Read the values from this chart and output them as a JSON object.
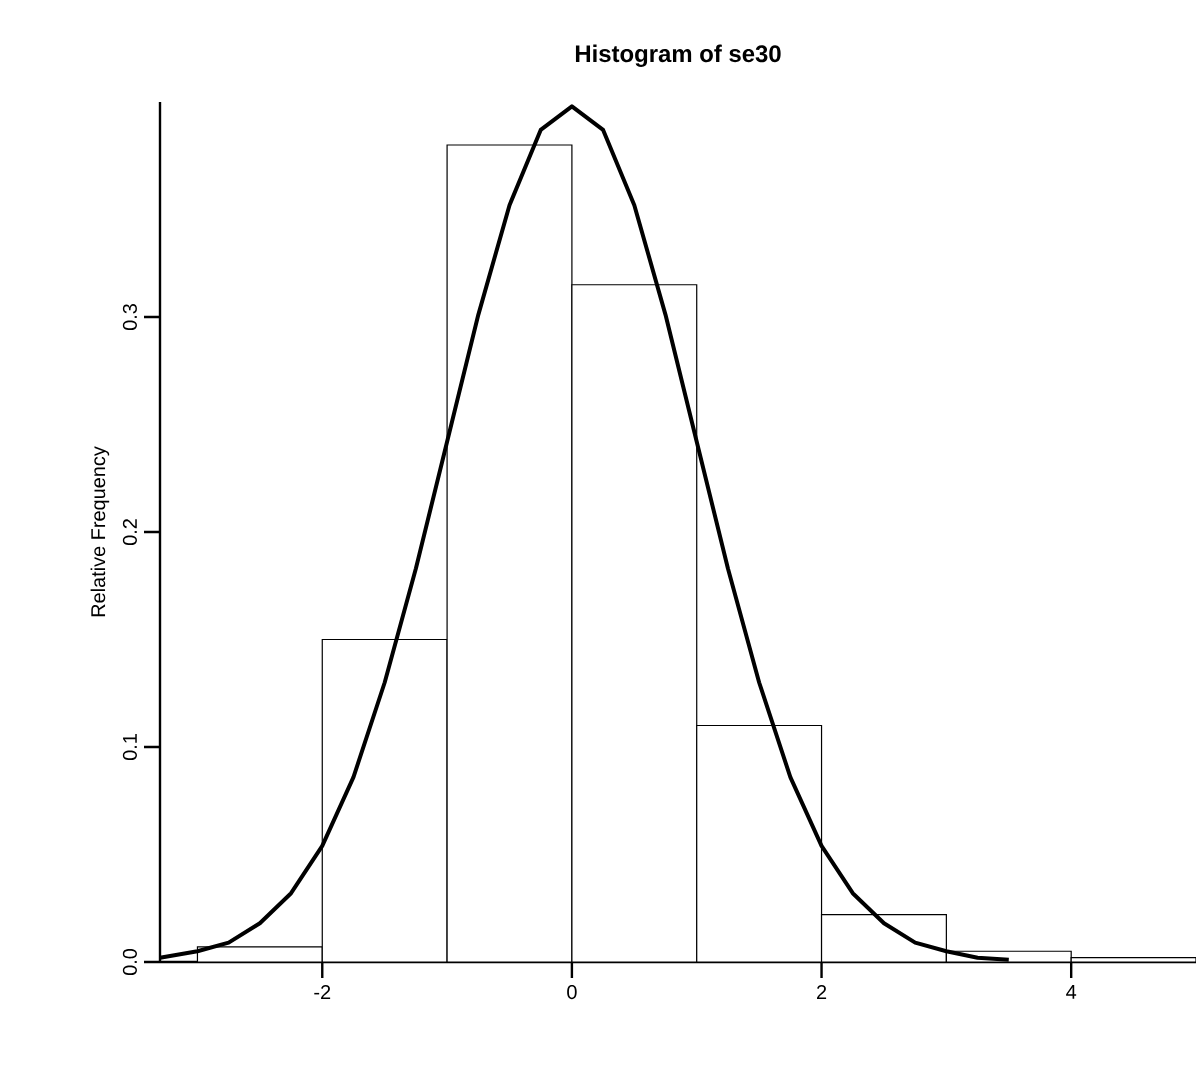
{
  "chart_data": {
    "type": "histogram",
    "title": "Histogram of se30",
    "ylabel": "Relative Frequency",
    "bins": [
      -3,
      -2,
      -1,
      0,
      1,
      2,
      3,
      4,
      5
    ],
    "values": [
      0.007,
      0.15,
      0.38,
      0.315,
      0.11,
      0.022,
      0.005,
      0.002
    ],
    "color": "#ffffff",
    "series": [
      {
        "type": "line",
        "color": "#000000",
        "x": [
          -3.3,
          -3.0,
          -2.75,
          -2.5,
          -2.25,
          -2.0,
          -1.75,
          -1.5,
          -1.25,
          -1.0,
          -0.75,
          -0.5,
          -0.25,
          0.0,
          0.25,
          0.5,
          0.75,
          1.0,
          1.25,
          1.5,
          1.75,
          2.0,
          2.25,
          2.5,
          2.75,
          3.0,
          3.25,
          3.5
        ],
        "values": [
          0.002,
          0.005,
          0.009,
          0.018,
          0.032,
          0.054,
          0.086,
          0.13,
          0.183,
          0.242,
          0.301,
          0.352,
          0.387,
          0.398,
          0.387,
          0.352,
          0.301,
          0.242,
          0.183,
          0.13,
          0.086,
          0.054,
          0.032,
          0.018,
          0.009,
          0.005,
          0.002,
          0.001
        ]
      }
    ],
    "xlim": [
      -3.3,
      5
    ],
    "ylim": [
      0,
      0.4
    ],
    "xticks": [
      -2,
      0,
      2,
      4
    ],
    "yticks": [
      {
        "value": 0,
        "label": "0.0"
      },
      0.1,
      0.2,
      0.3
    ],
    "grid": false
  }
}
